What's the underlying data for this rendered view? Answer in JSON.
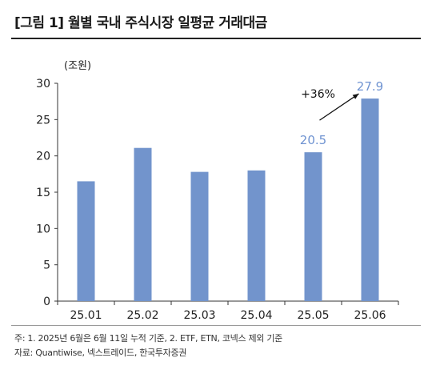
{
  "header": {
    "title": "[그림 1] 월별 국내 주식시장 일평균 거래대금"
  },
  "chart_data": {
    "type": "bar",
    "unit_label": "(조원)",
    "categories": [
      "25.01",
      "25.02",
      "25.03",
      "25.04",
      "25.05",
      "25.06"
    ],
    "values": [
      16.5,
      21.1,
      17.8,
      18.0,
      20.5,
      27.9
    ],
    "ylim": [
      0,
      30
    ],
    "yticks": [
      0,
      5,
      10,
      15,
      20,
      25,
      30
    ],
    "bar_color": "#7294cc",
    "data_labels": [
      {
        "index": 4,
        "text": "20.5"
      },
      {
        "index": 5,
        "text": "27.9"
      }
    ],
    "data_label_color": "#6f93d1",
    "annotation": {
      "text": "+36%",
      "from_index": 4,
      "to_index": 5
    },
    "grid": false,
    "legend": "none"
  },
  "footer": {
    "note": "주: 1. 2025년 6월은 6월 11일 누적 기준, 2. ETF, ETN, 코넥스 제외 기준",
    "source": "자료: Quantiwise, 넥스트레이드, 한국투자증권"
  }
}
